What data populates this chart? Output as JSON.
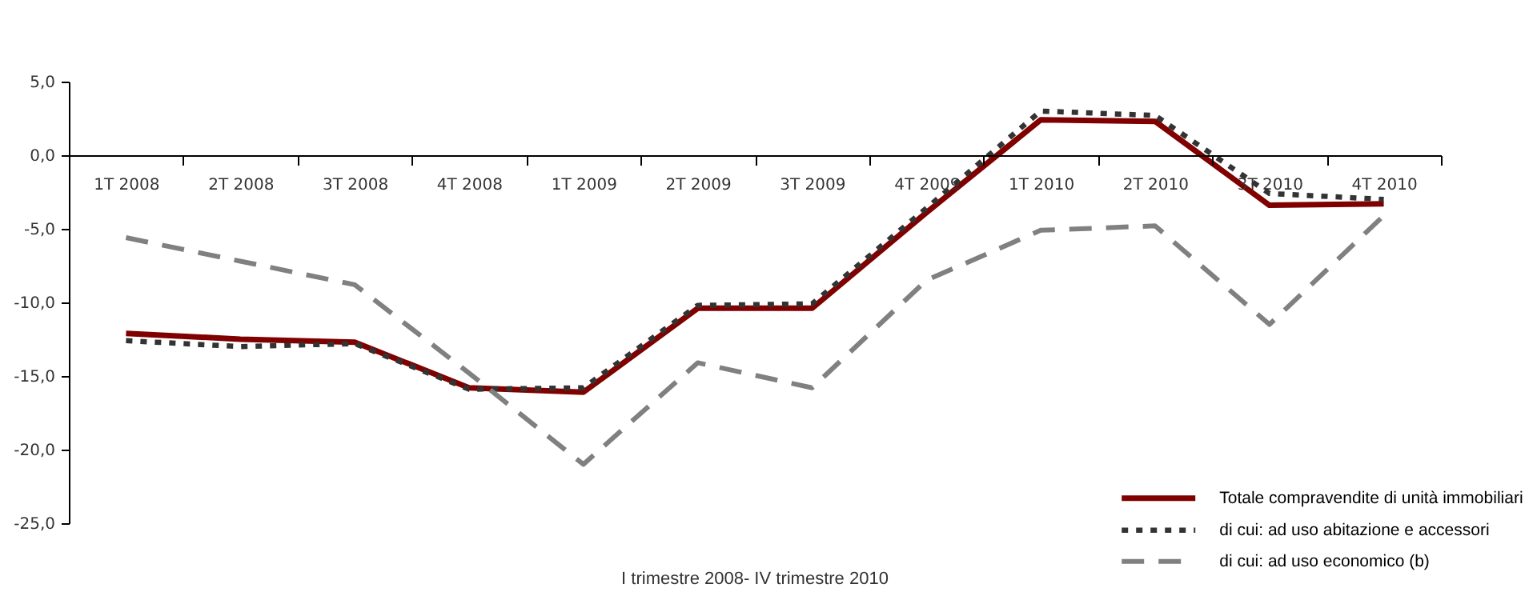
{
  "chart_data": {
    "type": "line",
    "xlabel": "I trimestre 2008- IV trimestre 2010",
    "categories": [
      "1T 2008",
      "2T 2008",
      "3T 2008",
      "4T 2008",
      "1T 2009",
      "2T 2009",
      "3T 2009",
      "4T 2009",
      "1T 2010",
      "2T 2010",
      "3T 2010",
      "4T 2010"
    ],
    "ylim": [
      -25,
      5
    ],
    "yticks": [
      {
        "value": -25,
        "label": "-25,0"
      },
      {
        "value": -20,
        "label": "-20,0"
      },
      {
        "value": -15,
        "label": "-15,0"
      },
      {
        "value": -10,
        "label": "-10,0"
      },
      {
        "value": -5,
        "label": "-5,0"
      },
      {
        "value": 0,
        "label": "0,0"
      },
      {
        "value": 5,
        "label": "5,0"
      }
    ],
    "legend": "bottom right",
    "series": [
      {
        "name": "Totale compravendite di unità immobiliari",
        "color": "#800000",
        "line_style": "solid",
        "values": [
          -12.1,
          -12.5,
          -12.7,
          -15.8,
          -16.1,
          -10.4,
          -10.4,
          -3.9,
          2.4,
          2.3,
          -3.4,
          -3.3
        ]
      },
      {
        "name": "di cui: ad uso abitazione e accessori",
        "color": "#333333",
        "line_style": "dotted",
        "values": [
          -12.6,
          -13.0,
          -12.8,
          -15.9,
          -15.8,
          -10.2,
          -10.1,
          -3.6,
          3.0,
          2.7,
          -2.6,
          -3.0
        ]
      },
      {
        "name": "di cui: ad uso economico (b)",
        "color": "#808080",
        "line_style": "dashed",
        "values": [
          -5.6,
          -7.2,
          -8.8,
          -14.8,
          -21.0,
          -14.1,
          -15.8,
          -8.5,
          -5.1,
          -4.8,
          -11.5,
          -4.1
        ]
      }
    ]
  }
}
